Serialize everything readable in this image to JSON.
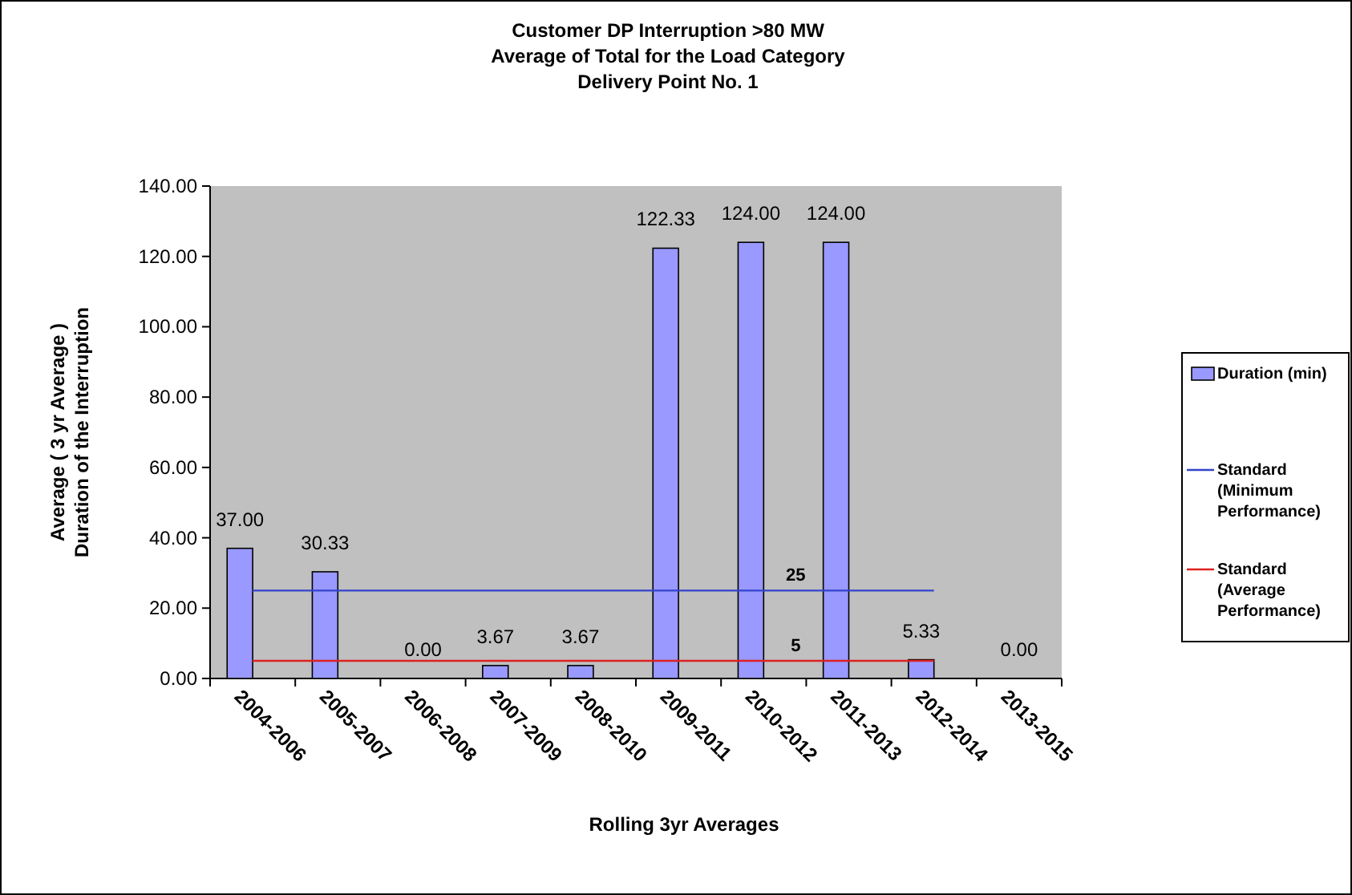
{
  "chart_data": {
    "type": "bar",
    "title": "Customer DP Interruption >80 MW\nAverage of Total for the Load Category\nDelivery Point No. 1",
    "xlabel": "Rolling 3yr Averages",
    "ylabel": "Average  ( 3 yr Average  )\nDuration of the Interruption",
    "categories": [
      "2004-2006",
      "2005-2007",
      "2006-2008",
      "2007-2009",
      "2008-2010",
      "2009-2011",
      "2010-2012",
      "2011-2013",
      "2012-2014",
      "2013-2015"
    ],
    "series": [
      {
        "name": "Duration (min)",
        "color": "#9999ff",
        "values": [
          37,
          30.33,
          0,
          3.67,
          3.67,
          122.33,
          124,
          124,
          5.33,
          0
        ],
        "value_labels": [
          "37.00",
          "30.33",
          "0.00",
          "3.67",
          "3.67",
          "122.33",
          "124.00",
          "124.00",
          "5.33",
          "0.00"
        ]
      },
      {
        "name": "Standard (Minimum Performance)",
        "type": "line",
        "color": "#3344cc",
        "values": [
          25,
          25,
          25,
          25,
          25,
          25,
          25,
          25,
          25,
          null
        ],
        "value_labels": [
          null,
          null,
          null,
          null,
          null,
          null,
          "25",
          null,
          null,
          null
        ]
      },
      {
        "name": "Standard (Average Performance)",
        "type": "line",
        "color": "#dd2222",
        "values": [
          5,
          5,
          5,
          5,
          5,
          5,
          5,
          5,
          5,
          null
        ],
        "value_labels": [
          null,
          null,
          null,
          null,
          null,
          null,
          "5",
          null,
          null,
          null
        ]
      }
    ],
    "ylim": [
      0,
      140
    ],
    "yticks": [
      {
        "value": 0,
        "label": "0.00"
      },
      {
        "value": 20,
        "label": "20.00"
      },
      {
        "value": 40,
        "label": "40.00"
      },
      {
        "value": 60,
        "label": "60.00"
      },
      {
        "value": 80,
        "label": "80.00"
      },
      {
        "value": 100,
        "label": "100.00"
      },
      {
        "value": 120,
        "label": "120.00"
      },
      {
        "value": 140,
        "label": "140.00"
      }
    ],
    "grid": false,
    "legend": "right",
    "marker": "none"
  }
}
